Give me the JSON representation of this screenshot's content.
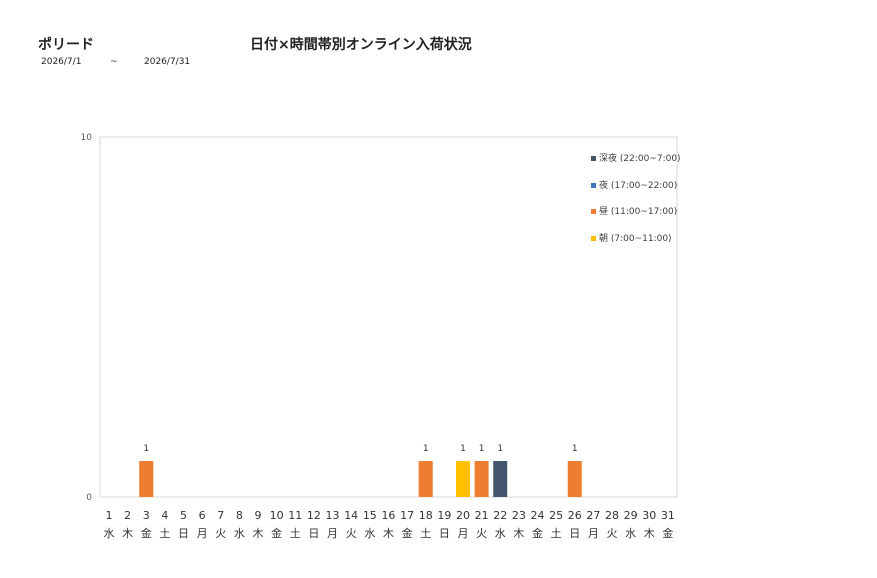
{
  "header": {
    "brand": "ポリード",
    "title": "日付×時間帯別オンライン入荷状況",
    "date_from": "2026/7/1",
    "separator": "~",
    "date_to": "2026/7/31"
  },
  "chart_data": {
    "type": "bar",
    "stacked": true,
    "title": "日付×時間帯別オンライン入荷状況",
    "xlabel": "",
    "ylabel": "",
    "ylim": [
      0,
      10
    ],
    "yticks": [
      0,
      10
    ],
    "grid": false,
    "legend_position": "top-right",
    "categories": [
      "1",
      "2",
      "3",
      "4",
      "5",
      "6",
      "7",
      "8",
      "9",
      "10",
      "11",
      "12",
      "13",
      "14",
      "15",
      "16",
      "17",
      "18",
      "19",
      "20",
      "21",
      "22",
      "23",
      "24",
      "25",
      "26",
      "27",
      "28",
      "29",
      "30",
      "31"
    ],
    "weekdays": [
      "水",
      "木",
      "金",
      "土",
      "日",
      "月",
      "火",
      "水",
      "木",
      "金",
      "土",
      "日",
      "月",
      "火",
      "水",
      "木",
      "金",
      "土",
      "日",
      "月",
      "火",
      "水",
      "木",
      "金",
      "土",
      "日",
      "月",
      "火",
      "水",
      "木",
      "金"
    ],
    "series": [
      {
        "name": "朝 (7:00~11:00)",
        "color": "#FFC000",
        "values": [
          0,
          0,
          0,
          0,
          0,
          0,
          0,
          0,
          0,
          0,
          0,
          0,
          0,
          0,
          0,
          0,
          0,
          0,
          0,
          1,
          0,
          0,
          0,
          0,
          0,
          0,
          0,
          0,
          0,
          0,
          0
        ]
      },
      {
        "name": "昼 (11:00~17:00)",
        "color": "#ED7D31",
        "values": [
          0,
          0,
          1,
          0,
          0,
          0,
          0,
          0,
          0,
          0,
          0,
          0,
          0,
          0,
          0,
          0,
          0,
          1,
          0,
          0,
          1,
          0,
          0,
          0,
          0,
          1,
          0,
          0,
          0,
          0,
          0
        ]
      },
      {
        "name": "夜 (17:00~22:00)",
        "color": "#4472C4",
        "values": [
          0,
          0,
          0,
          0,
          0,
          0,
          0,
          0,
          0,
          0,
          0,
          0,
          0,
          0,
          0,
          0,
          0,
          0,
          0,
          0,
          0,
          0,
          0,
          0,
          0,
          0,
          0,
          0,
          0,
          0,
          0
        ]
      },
      {
        "name": "深夜 (22:00~7:00)",
        "color": "#44546A",
        "values": [
          0,
          0,
          0,
          0,
          0,
          0,
          0,
          0,
          0,
          0,
          0,
          0,
          0,
          0,
          0,
          0,
          0,
          0,
          0,
          0,
          0,
          1,
          0,
          0,
          0,
          0,
          0,
          0,
          0,
          0,
          0
        ]
      }
    ],
    "totals": [
      0,
      0,
      1,
      0,
      0,
      0,
      0,
      0,
      0,
      0,
      0,
      0,
      0,
      0,
      0,
      0,
      0,
      1,
      0,
      1,
      1,
      1,
      0,
      0,
      0,
      1,
      0,
      0,
      0,
      0,
      0
    ],
    "legend_order": [
      "深夜 (22:00~7:00)",
      "夜 (17:00~22:00)",
      "昼 (11:00~17:00)",
      "朝 (7:00~11:00)"
    ]
  }
}
